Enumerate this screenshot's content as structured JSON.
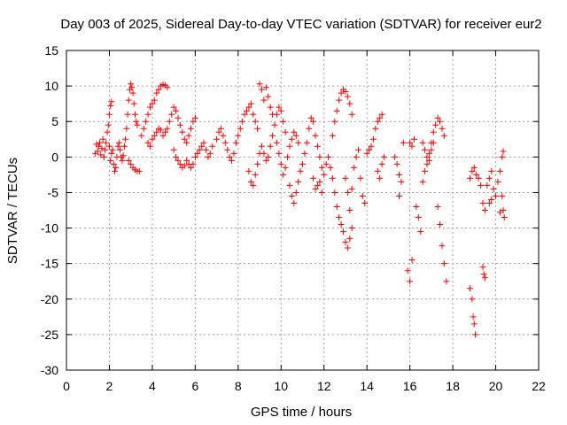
{
  "chart_data": {
    "type": "scatter",
    "title": "Day 003 of 2025, Sidereal Day-to-day VTEC variation (SDTVAR) for receiver eur2",
    "xlabel": "GPS time / hours",
    "ylabel": "SDTVAR / TECUs",
    "xlim": [
      0,
      22
    ],
    "ylim": [
      -30,
      15
    ],
    "xticks": [
      0,
      2,
      4,
      6,
      8,
      10,
      12,
      14,
      16,
      18,
      20,
      22
    ],
    "yticks": [
      -30,
      -25,
      -20,
      -15,
      -10,
      -5,
      0,
      5,
      10,
      15
    ],
    "grid": true,
    "marker": "+",
    "color": "#ff0000",
    "series": [
      {
        "name": "SDTVAR",
        "points": [
          [
            1.35,
            0.5
          ],
          [
            1.4,
            1.8
          ],
          [
            1.45,
            0.8
          ],
          [
            1.5,
            1.5
          ],
          [
            1.55,
            2.0
          ],
          [
            1.6,
            0.3
          ],
          [
            1.65,
            1.2
          ],
          [
            1.7,
            2.5
          ],
          [
            1.75,
            0.0
          ],
          [
            1.8,
            1.0
          ],
          [
            1.85,
            2.0
          ],
          [
            1.9,
            3.5
          ],
          [
            1.95,
            4.5
          ],
          [
            2.0,
            6.0
          ],
          [
            2.05,
            7.2
          ],
          [
            2.1,
            7.8
          ],
          [
            2.0,
            1.5
          ],
          [
            2.05,
            -0.5
          ],
          [
            2.1,
            0.5
          ],
          [
            2.15,
            1.0
          ],
          [
            2.2,
            -1.0
          ],
          [
            2.25,
            -2.0
          ],
          [
            2.3,
            -1.5
          ],
          [
            2.35,
            0.0
          ],
          [
            2.4,
            1.5
          ],
          [
            2.45,
            2.0
          ],
          [
            2.5,
            1.0
          ],
          [
            2.55,
            0.0
          ],
          [
            2.6,
            -0.5
          ],
          [
            2.65,
            0.2
          ],
          [
            2.7,
            1.5
          ],
          [
            2.75,
            2.5
          ],
          [
            2.8,
            4.0
          ],
          [
            2.85,
            6.0
          ],
          [
            2.9,
            8.0
          ],
          [
            2.95,
            9.5
          ],
          [
            3.0,
            10.3
          ],
          [
            3.05,
            9.8
          ],
          [
            3.1,
            9.0
          ],
          [
            3.15,
            7.5
          ],
          [
            3.2,
            6.0
          ],
          [
            3.25,
            5.0
          ],
          [
            3.3,
            4.5
          ],
          [
            2.9,
            -0.5
          ],
          [
            3.0,
            -1.0
          ],
          [
            3.1,
            -1.5
          ],
          [
            3.2,
            -1.8
          ],
          [
            3.3,
            -2.0
          ],
          [
            3.4,
            -2.0
          ],
          [
            3.5,
            3.0
          ],
          [
            3.6,
            4.0
          ],
          [
            3.7,
            5.0
          ],
          [
            3.8,
            6.0
          ],
          [
            3.9,
            7.0
          ],
          [
            4.0,
            7.5
          ],
          [
            4.1,
            8.0
          ],
          [
            4.2,
            9.0
          ],
          [
            4.3,
            9.5
          ],
          [
            4.4,
            10.0
          ],
          [
            4.5,
            10.2
          ],
          [
            4.6,
            10.1
          ],
          [
            4.7,
            9.8
          ],
          [
            3.8,
            2.0
          ],
          [
            3.9,
            1.5
          ],
          [
            4.0,
            2.5
          ],
          [
            4.1,
            3.0
          ],
          [
            4.2,
            3.5
          ],
          [
            4.3,
            4.0
          ],
          [
            4.4,
            3.8
          ],
          [
            4.5,
            3.0
          ],
          [
            4.6,
            3.5
          ],
          [
            4.7,
            4.0
          ],
          [
            4.8,
            5.0
          ],
          [
            4.9,
            6.0
          ],
          [
            5.0,
            7.0
          ],
          [
            5.1,
            6.5
          ],
          [
            5.2,
            5.5
          ],
          [
            5.3,
            4.5
          ],
          [
            5.4,
            3.5
          ],
          [
            5.5,
            2.5
          ],
          [
            5.6,
            2.0
          ],
          [
            5.7,
            3.0
          ],
          [
            5.8,
            4.0
          ],
          [
            5.9,
            5.0
          ],
          [
            6.0,
            5.5
          ],
          [
            5.0,
            1.0
          ],
          [
            5.1,
            0.0
          ],
          [
            5.2,
            -0.5
          ],
          [
            5.3,
            -1.0
          ],
          [
            5.4,
            -1.5
          ],
          [
            5.5,
            -1.2
          ],
          [
            5.6,
            -0.5
          ],
          [
            5.7,
            -1.0
          ],
          [
            5.8,
            -1.5
          ],
          [
            5.9,
            -1.0
          ],
          [
            6.0,
            0.0
          ],
          [
            6.1,
            0.5
          ],
          [
            6.2,
            1.0
          ],
          [
            6.3,
            1.5
          ],
          [
            6.4,
            2.0
          ],
          [
            6.5,
            1.0
          ],
          [
            6.6,
            0.0
          ],
          [
            6.7,
            0.5
          ],
          [
            6.8,
            1.5
          ],
          [
            7.0,
            2.5
          ],
          [
            7.1,
            3.5
          ],
          [
            7.2,
            4.0
          ],
          [
            7.3,
            3.0
          ],
          [
            7.4,
            2.0
          ],
          [
            7.5,
            1.0
          ],
          [
            7.6,
            0.0
          ],
          [
            7.7,
            -0.5
          ],
          [
            7.8,
            0.5
          ],
          [
            7.9,
            2.0
          ],
          [
            8.0,
            3.0
          ],
          [
            8.1,
            4.0
          ],
          [
            8.2,
            5.0
          ],
          [
            8.3,
            6.0
          ],
          [
            8.4,
            6.5
          ],
          [
            8.5,
            7.0
          ],
          [
            8.6,
            7.5
          ],
          [
            8.7,
            6.0
          ],
          [
            8.8,
            5.0
          ],
          [
            8.9,
            4.0
          ],
          [
            9.0,
            10.3
          ],
          [
            9.1,
            9.5
          ],
          [
            9.2,
            8.0
          ],
          [
            9.3,
            9.8
          ],
          [
            9.4,
            8.5
          ],
          [
            9.5,
            7.0
          ],
          [
            9.6,
            6.0
          ],
          [
            8.5,
            -2.0
          ],
          [
            8.6,
            -3.5
          ],
          [
            8.7,
            -4.0
          ],
          [
            8.8,
            -2.5
          ],
          [
            8.9,
            -1.0
          ],
          [
            9.0,
            0.5
          ],
          [
            9.1,
            1.5
          ],
          [
            9.2,
            0.5
          ],
          [
            9.3,
            -0.5
          ],
          [
            9.4,
            0.0
          ],
          [
            9.5,
            1.5
          ],
          [
            9.6,
            3.0
          ],
          [
            9.7,
            4.5
          ],
          [
            9.8,
            6.0
          ],
          [
            9.9,
            7.0
          ],
          [
            10.0,
            6.5
          ],
          [
            10.1,
            5.0
          ],
          [
            10.2,
            3.5
          ],
          [
            9.8,
            2.0
          ],
          [
            9.9,
            0.5
          ],
          [
            10.0,
            -1.0
          ],
          [
            10.1,
            -2.5
          ],
          [
            10.2,
            -1.5
          ],
          [
            10.3,
            0.0
          ],
          [
            10.4,
            1.5
          ],
          [
            10.5,
            2.5
          ],
          [
            10.6,
            3.5
          ],
          [
            10.7,
            3.0
          ],
          [
            10.8,
            2.0
          ],
          [
            10.4,
            -4.0
          ],
          [
            10.5,
            -5.5
          ],
          [
            10.6,
            -6.5
          ],
          [
            10.7,
            -5.0
          ],
          [
            10.8,
            -3.5
          ],
          [
            10.9,
            -2.0
          ],
          [
            11.0,
            -1.0
          ],
          [
            11.1,
            0.5
          ],
          [
            11.2,
            2.0
          ],
          [
            11.3,
            4.0
          ],
          [
            11.4,
            5.5
          ],
          [
            11.5,
            5.0
          ],
          [
            11.6,
            3.0
          ],
          [
            11.7,
            1.5
          ],
          [
            11.8,
            0.0
          ],
          [
            11.9,
            -1.5
          ],
          [
            11.5,
            -3.0
          ],
          [
            11.6,
            -4.5
          ],
          [
            11.7,
            -4.0
          ],
          [
            11.8,
            -3.5
          ],
          [
            11.9,
            -5.0
          ],
          [
            12.0,
            -2.5
          ],
          [
            12.1,
            -1.0
          ],
          [
            12.2,
            0.0
          ],
          [
            12.3,
            -1.5
          ],
          [
            12.4,
            -3.0
          ],
          [
            12.5,
            -5.0
          ],
          [
            12.6,
            -7.0
          ],
          [
            12.7,
            -8.5
          ],
          [
            12.8,
            -9.5
          ],
          [
            12.9,
            -10.5
          ],
          [
            13.0,
            -12.0
          ],
          [
            13.1,
            -12.8
          ],
          [
            13.2,
            -11.5
          ],
          [
            13.3,
            -10.0
          ],
          [
            12.4,
            3.0
          ],
          [
            12.5,
            5.0
          ],
          [
            12.6,
            6.5
          ],
          [
            12.7,
            8.0
          ],
          [
            12.8,
            9.0
          ],
          [
            12.9,
            9.5
          ],
          [
            13.0,
            9.2
          ],
          [
            13.1,
            8.5
          ],
          [
            13.2,
            7.5
          ],
          [
            13.3,
            6.0
          ],
          [
            13.0,
            -3.0
          ],
          [
            13.1,
            -5.0
          ],
          [
            13.2,
            -7.5
          ],
          [
            13.3,
            -4.5
          ],
          [
            13.4,
            -1.5
          ],
          [
            13.5,
            0.0
          ],
          [
            13.6,
            1.0
          ],
          [
            13.7,
            -3.0
          ],
          [
            13.8,
            -5.5
          ],
          [
            13.9,
            -6.5
          ],
          [
            14.0,
            0.5
          ],
          [
            14.1,
            1.0
          ],
          [
            14.2,
            1.5
          ],
          [
            14.3,
            2.5
          ],
          [
            14.4,
            4.0
          ],
          [
            14.5,
            5.0
          ],
          [
            14.6,
            5.5
          ],
          [
            14.7,
            6.0
          ],
          [
            14.5,
            -2.0
          ],
          [
            14.6,
            -3.0
          ],
          [
            14.7,
            -1.0
          ],
          [
            14.8,
            0.0
          ],
          [
            15.3,
            0.0
          ],
          [
            15.4,
            -1.0
          ],
          [
            15.5,
            -2.5
          ],
          [
            15.6,
            -3.5
          ],
          [
            15.7,
            2.0
          ],
          [
            15.5,
            -5.5
          ],
          [
            15.9,
            -16.0
          ],
          [
            16.0,
            -17.5
          ],
          [
            16.1,
            -14.5
          ],
          [
            16.0,
            2.0
          ],
          [
            16.1,
            1.5
          ],
          [
            16.2,
            2.5
          ],
          [
            16.3,
            -7.0
          ],
          [
            16.4,
            -8.5
          ],
          [
            16.5,
            -10.5
          ],
          [
            16.6,
            -3.5
          ],
          [
            16.7,
            -2.0
          ],
          [
            16.8,
            -1.0
          ],
          [
            16.9,
            0.5
          ],
          [
            17.0,
            2.0
          ],
          [
            17.1,
            3.5
          ],
          [
            17.2,
            4.5
          ],
          [
            17.3,
            5.5
          ],
          [
            17.4,
            5.0
          ],
          [
            17.5,
            4.0
          ],
          [
            17.6,
            3.0
          ],
          [
            16.6,
            2.0
          ],
          [
            16.7,
            1.0
          ],
          [
            16.8,
            0.0
          ],
          [
            16.9,
            -0.5
          ],
          [
            17.0,
            1.0
          ],
          [
            17.1,
            2.0
          ],
          [
            17.3,
            -7.0
          ],
          [
            17.4,
            -9.5
          ],
          [
            17.5,
            -12.5
          ],
          [
            17.6,
            -15.0
          ],
          [
            17.7,
            -17.5
          ],
          [
            18.8,
            -18.5
          ],
          [
            18.9,
            -20.0
          ],
          [
            18.95,
            -22.5
          ],
          [
            19.0,
            -23.5
          ],
          [
            19.05,
            -25.0
          ],
          [
            18.8,
            -3.0
          ],
          [
            18.9,
            -2.0
          ],
          [
            19.0,
            -1.5
          ],
          [
            19.1,
            -2.5
          ],
          [
            19.2,
            -3.0
          ],
          [
            19.3,
            -4.0
          ],
          [
            19.4,
            -6.5
          ],
          [
            19.5,
            -7.5
          ],
          [
            19.4,
            -15.5
          ],
          [
            19.45,
            -16.5
          ],
          [
            19.5,
            -17.0
          ],
          [
            19.6,
            -4.0
          ],
          [
            19.7,
            -3.0
          ],
          [
            19.8,
            -2.0
          ],
          [
            19.9,
            -4.5
          ],
          [
            20.0,
            -5.5
          ],
          [
            19.7,
            -6.5
          ],
          [
            19.8,
            -6.0
          ],
          [
            20.1,
            -3.5
          ],
          [
            20.2,
            -2.0
          ],
          [
            20.3,
            0.0
          ],
          [
            20.35,
            0.8
          ],
          [
            20.3,
            -5.5
          ],
          [
            20.35,
            -7.5
          ],
          [
            20.4,
            -8.5
          ],
          [
            20.2,
            -7.8
          ]
        ]
      }
    ]
  }
}
